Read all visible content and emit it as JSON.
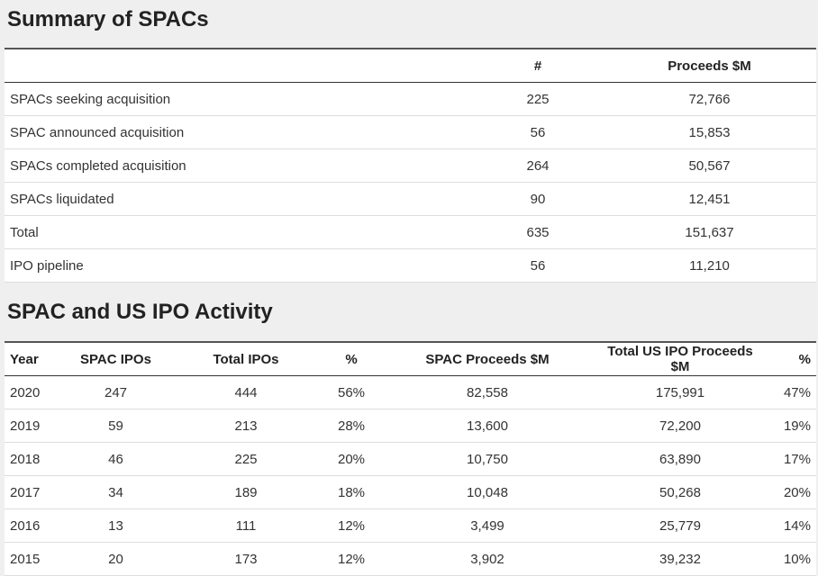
{
  "summary": {
    "title": "Summary of SPACs",
    "headers": [
      "",
      "#",
      "Proceeds $M"
    ],
    "rows": [
      {
        "label": "SPACs seeking acquisition",
        "count": "225",
        "proceeds": "72,766"
      },
      {
        "label": "SPAC announced acquisition",
        "count": "56",
        "proceeds": "15,853"
      },
      {
        "label": "SPACs completed acquisition",
        "count": "264",
        "proceeds": "50,567"
      },
      {
        "label": "SPACs liquidated",
        "count": "90",
        "proceeds": "12,451"
      },
      {
        "label": "Total",
        "count": "635",
        "proceeds": "151,637"
      },
      {
        "label": "IPO pipeline",
        "count": "56",
        "proceeds": "11,210"
      }
    ]
  },
  "activity": {
    "title": "SPAC and US IPO Activity",
    "headers": [
      "Year",
      "SPAC IPOs",
      "Total IPOs",
      "%",
      "SPAC Proceeds $M",
      "Total US IPO Proceeds $M",
      "%"
    ],
    "rows": [
      {
        "year": "2020",
        "spac_ipos": "247",
        "total_ipos": "444",
        "pct_ipos": "56%",
        "spac_proceeds": "82,558",
        "total_proceeds": "175,991",
        "pct_proceeds": "47%"
      },
      {
        "year": "2019",
        "spac_ipos": "59",
        "total_ipos": "213",
        "pct_ipos": "28%",
        "spac_proceeds": "13,600",
        "total_proceeds": "72,200",
        "pct_proceeds": "19%"
      },
      {
        "year": "2018",
        "spac_ipos": "46",
        "total_ipos": "225",
        "pct_ipos": "20%",
        "spac_proceeds": "10,750",
        "total_proceeds": "63,890",
        "pct_proceeds": "17%"
      },
      {
        "year": "2017",
        "spac_ipos": "34",
        "total_ipos": "189",
        "pct_ipos": "18%",
        "spac_proceeds": "10,048",
        "total_proceeds": "50,268",
        "pct_proceeds": "20%"
      },
      {
        "year": "2016",
        "spac_ipos": "13",
        "total_ipos": "111",
        "pct_ipos": "12%",
        "spac_proceeds": "3,499",
        "total_proceeds": "25,779",
        "pct_proceeds": "14%"
      },
      {
        "year": "2015",
        "spac_ipos": "20",
        "total_ipos": "173",
        "pct_ipos": "12%",
        "spac_proceeds": "3,902",
        "total_proceeds": "39,232",
        "pct_proceeds": "10%"
      }
    ]
  }
}
